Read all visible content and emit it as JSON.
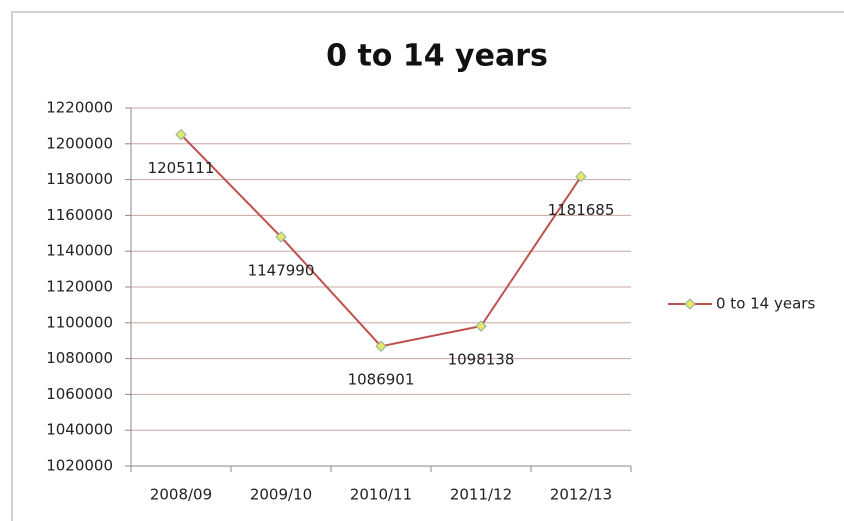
{
  "chart_data": {
    "type": "line",
    "title": "0 to 14 years",
    "categories": [
      "2008/09",
      "2009/10",
      "2010/11",
      "2011/12",
      "2012/13"
    ],
    "series": [
      {
        "name": "0 to 14 years",
        "color": "#c0504d",
        "marker_color": "#e4e86a",
        "values": [
          1205111,
          1147990,
          1086901,
          1098138,
          1181685
        ]
      }
    ],
    "ylim": [
      1020000,
      1220000
    ],
    "yticks": [
      1020000,
      1040000,
      1060000,
      1080000,
      1100000,
      1120000,
      1140000,
      1160000,
      1180000,
      1200000,
      1220000
    ],
    "grid": true,
    "legend": "right"
  }
}
